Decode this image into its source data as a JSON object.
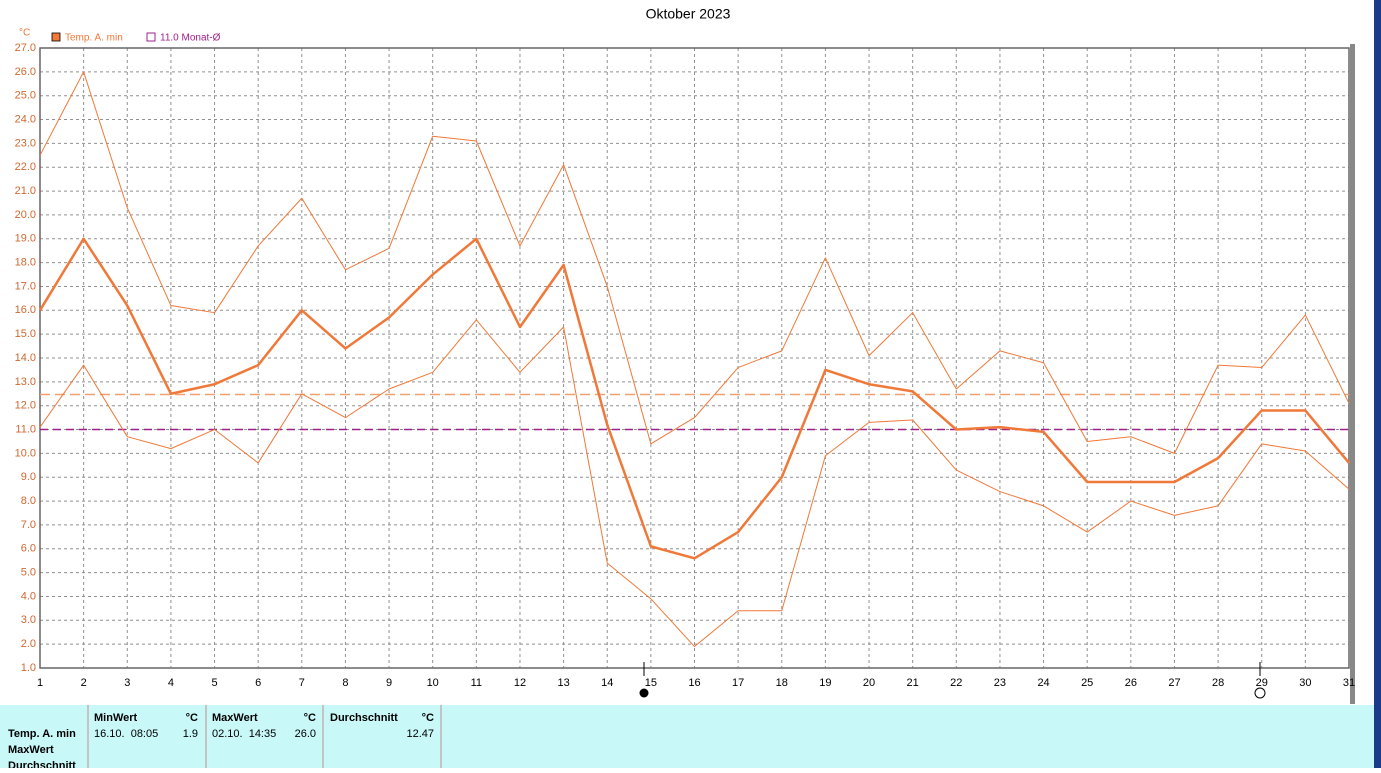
{
  "chart_data": {
    "type": "line",
    "title": "Oktober 2023",
    "y_label": "°C",
    "x": [
      1,
      2,
      3,
      4,
      5,
      6,
      7,
      8,
      9,
      10,
      11,
      12,
      13,
      14,
      15,
      16,
      17,
      18,
      19,
      20,
      21,
      22,
      23,
      24,
      25,
      26,
      27,
      28,
      29,
      30,
      31
    ],
    "xlim": [
      1,
      31
    ],
    "xticks": [
      1,
      2,
      3,
      4,
      5,
      6,
      7,
      8,
      9,
      10,
      11,
      12,
      13,
      14,
      15,
      16,
      17,
      18,
      19,
      20,
      21,
      22,
      23,
      24,
      25,
      26,
      27,
      28,
      29,
      30,
      31
    ],
    "ylim": [
      1,
      27
    ],
    "yticks": [
      {
        "value": 1,
        "label": "1.0"
      },
      {
        "value": 2,
        "label": "2.0"
      },
      {
        "value": 3,
        "label": "3.0"
      },
      {
        "value": 4,
        "label": "4.0"
      },
      {
        "value": 5,
        "label": "5.0"
      },
      {
        "value": 6,
        "label": "6.0"
      },
      {
        "value": 7,
        "label": "7.0"
      },
      {
        "value": 8,
        "label": "8.0"
      },
      {
        "value": 9,
        "label": "9.0"
      },
      {
        "value": 10,
        "label": "10.0"
      },
      {
        "value": 11,
        "label": "11.0"
      },
      {
        "value": 12,
        "label": "12.0"
      },
      {
        "value": 13,
        "label": "13.0"
      },
      {
        "value": 14,
        "label": "14.0"
      },
      {
        "value": 15,
        "label": "15.0"
      },
      {
        "value": 16,
        "label": "16.0"
      },
      {
        "value": 17,
        "label": "17.0"
      },
      {
        "value": 18,
        "label": "18.0"
      },
      {
        "value": 19,
        "label": "19.0"
      },
      {
        "value": 20,
        "label": "20.0"
      },
      {
        "value": 21,
        "label": "21.0"
      },
      {
        "value": 22,
        "label": "22.0"
      },
      {
        "value": 23,
        "label": "23.0"
      },
      {
        "value": 24,
        "label": "24.0"
      },
      {
        "value": 25,
        "label": "25.0"
      },
      {
        "value": 26,
        "label": "26.0"
      },
      {
        "value": 27,
        "label": "27.0"
      }
    ],
    "grid": true,
    "series": [
      {
        "name": "Temp. A. min",
        "color": "#f07838",
        "width": 2.5,
        "values": [
          16.0,
          19.0,
          16.2,
          12.5,
          12.9,
          13.7,
          16.0,
          14.4,
          15.7,
          17.5,
          19.0,
          15.3,
          17.9,
          11.2,
          6.1,
          5.6,
          6.7,
          9.0,
          13.5,
          12.9,
          12.6,
          11.0,
          11.1,
          10.9,
          8.8,
          8.8,
          8.8,
          9.8,
          11.8,
          11.8,
          9.6
        ]
      },
      {
        "color": "#f07838",
        "width": 1,
        "values": [
          22.5,
          26.0,
          20.3,
          16.2,
          15.9,
          18.7,
          20.7,
          17.7,
          18.6,
          23.3,
          23.1,
          18.7,
          22.1,
          17.0,
          10.4,
          11.5,
          13.6,
          14.3,
          18.2,
          14.1,
          15.9,
          12.7,
          14.3,
          13.8,
          10.5,
          10.7,
          10.0,
          13.7,
          13.6,
          15.8,
          12.1
        ]
      },
      {
        "color": "#f07838",
        "width": 1,
        "values": [
          11.1,
          13.7,
          10.7,
          10.2,
          11.0,
          9.6,
          12.5,
          11.5,
          12.7,
          13.4,
          15.6,
          13.4,
          15.3,
          5.4,
          3.9,
          1.9,
          3.4,
          3.4,
          9.9,
          11.3,
          11.4,
          9.3,
          8.4,
          7.8,
          6.7,
          8.0,
          7.4,
          7.8,
          10.4,
          10.1,
          8.5
        ]
      }
    ],
    "reference_line": {
      "label": "11.0 Monat-Ø",
      "value": 11.0,
      "color": "#a0208a"
    },
    "average_line": {
      "value": 12.47,
      "color": "#f0a070"
    }
  },
  "table": {
    "row_labels": [
      "Temp. A. min",
      "MaxWert",
      "Durchschnitt"
    ],
    "headers": [
      [
        "MinWert",
        "°C"
      ],
      [
        "MaxWert",
        "°C"
      ],
      [
        "Durchschnitt",
        "°C"
      ]
    ],
    "cells": [
      "16.10.  08:05",
      "1.9",
      "02.10.  14:35",
      "26.0",
      "12.47"
    ]
  }
}
